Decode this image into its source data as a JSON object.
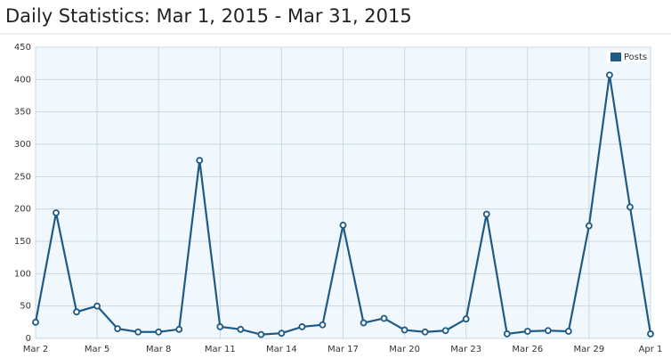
{
  "chart_data": {
    "type": "line",
    "title": "Daily Statistics: Mar 1, 2015 - Mar 31, 2015",
    "categories": [
      "Mar 2",
      null,
      null,
      "Mar 5",
      null,
      null,
      "Mar 8",
      null,
      null,
      "Mar 11",
      null,
      null,
      "Mar 14",
      null,
      null,
      "Mar 17",
      null,
      null,
      "Mar 20",
      null,
      null,
      "Mar 23",
      null,
      null,
      "Mar 26",
      null,
      null,
      "Mar 29",
      null,
      null,
      "Apr 1"
    ],
    "series": [
      {
        "name": "Posts",
        "color": "#1f5a85",
        "values": [
          25,
          194,
          41,
          50,
          15,
          10,
          10,
          14,
          275,
          18,
          14,
          6,
          8,
          18,
          21,
          175,
          24,
          31,
          13,
          10,
          12,
          30,
          192,
          7,
          11,
          12,
          11,
          174,
          407,
          203,
          7
        ]
      }
    ],
    "ylim": [
      0,
      450
    ],
    "yticks": [
      0,
      50,
      100,
      150,
      200,
      250,
      300,
      350,
      400,
      450
    ],
    "grid": true,
    "legend": "top-right"
  }
}
